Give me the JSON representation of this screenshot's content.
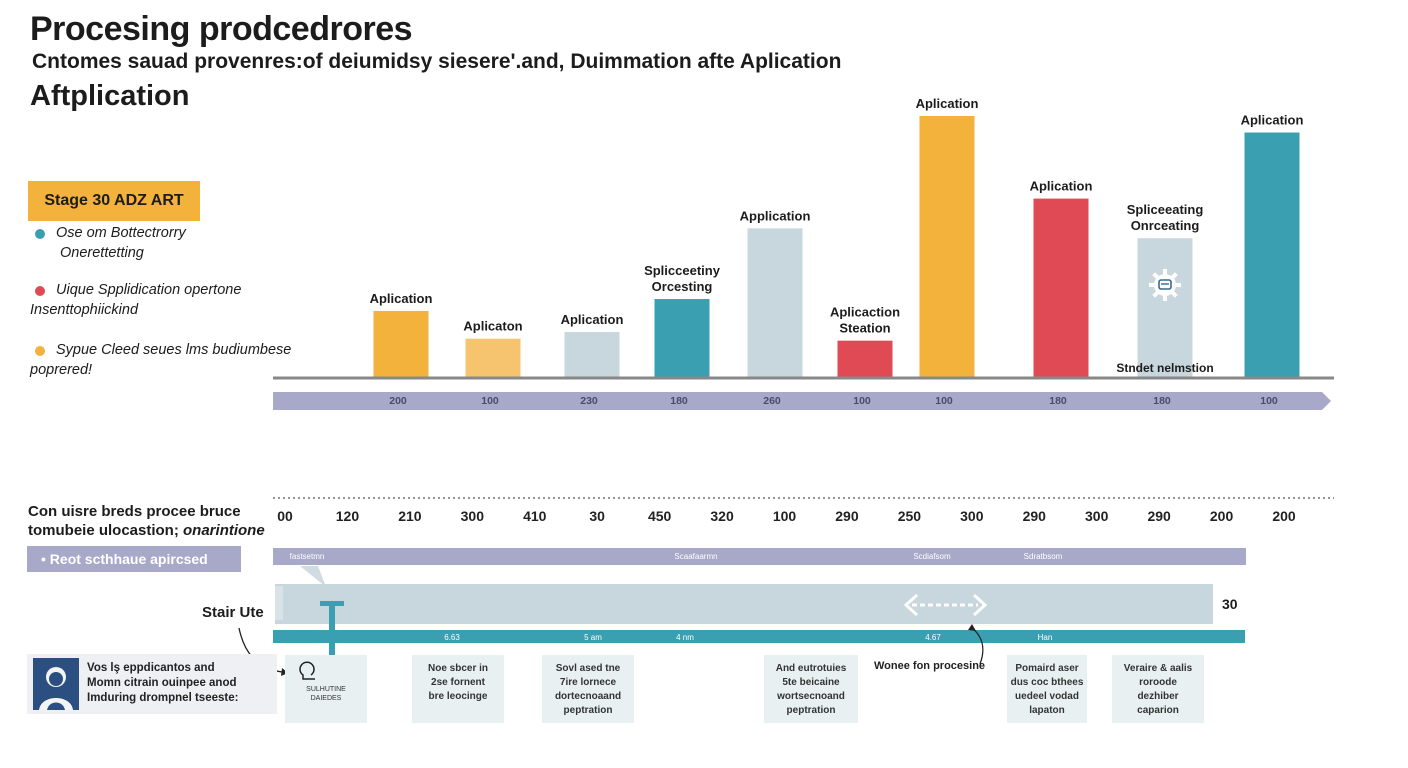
{
  "header": {
    "title": "Procesing prodcedrores",
    "subtitle": "Cntomes sauad provenres:of deiumidsy siesere'.and, Duimmation afte Aplication",
    "subtitle2": "Aftplication"
  },
  "legend": {
    "badge": "Stage 30 ADZ ART",
    "items": [
      {
        "line1": "Ose om Bottectrorry",
        "line2": "Onerettetting",
        "color": "#3a9fb0"
      },
      {
        "line1": "Uique Spplidication opertone",
        "line2": "Insenttophiickind",
        "color": "#e04a55"
      },
      {
        "line1": "Sypue Cleed seues lms budiumbese",
        "line2": "poprered!",
        "color": "#f2b23c"
      }
    ]
  },
  "chart_data": [
    {
      "type": "bar",
      "title": "Aftplication",
      "categories": [
        "Aplication",
        "Aplicaton",
        "Aplication",
        "Splicceetiny Orcesting",
        "Application",
        "Aplicaction Steation",
        "Aplication",
        "Aplication",
        "Spliceeating Onrceating",
        "Aplication"
      ],
      "values": [
        100,
        58,
        68,
        118,
        225,
        55,
        395,
        270,
        210,
        370
      ],
      "axis_values": [
        "200",
        "100",
        "230",
        "180",
        "260",
        "100",
        "100",
        "180",
        "180",
        "100"
      ],
      "colors": [
        "#f2b23c",
        "#f6c46e",
        "#c8d6de",
        "#3a9fb0",
        "#c8d6de",
        "#e04a55",
        "#f2b23c",
        "#e04a55",
        "#c8d6de",
        "#3a9fb0"
      ],
      "ylim": [
        0,
        420
      ],
      "annotation": "Stndet nelmstion"
    },
    {
      "type": "table",
      "title": "Con uisre breds procee bruce",
      "ticks": [
        "00",
        "120",
        "210",
        "300",
        "410",
        "30",
        "450",
        "320",
        "100",
        "290",
        "250",
        "300",
        "290",
        "300",
        "290",
        "200",
        "200"
      ],
      "phase_labels": [
        "fastsetmn",
        "Scaafaarmn",
        "Scdiafsom",
        "Sdratbsom"
      ],
      "lower_labels": [
        "6.63",
        "5 am",
        "4 nm",
        "4.67",
        "Han"
      ],
      "bar_value": "30"
    }
  ],
  "lower": {
    "title_line1": "Con uisre breds procee bruce",
    "title_line2": "tomubeie ulocastion;",
    "title_line2_italic": "onarintione",
    "pill": "• Reot scthhaue apircsed",
    "stair_label": "Stair Ute",
    "value_label": "30",
    "callout": "Wonee fon procesine"
  },
  "person": {
    "line1": "Vos lş eppdicantos and",
    "line2": "Momn citrain ouinpee anod",
    "line3": "Imduring drompnel tseeste:"
  },
  "notes": [
    {
      "lines": [
        "",
        "",
        "",
        "SULHUTINE",
        "DAIEDES"
      ]
    },
    {
      "lines": [
        "Noe sbcer in",
        "2se fornent",
        "bre leocinge"
      ]
    },
    {
      "lines": [
        "Sovl ased tne",
        "7ire lornece",
        "dortecnoaand",
        "peptration"
      ]
    },
    {
      "lines": [
        "And eutrotuies",
        "5te beicaine",
        "wortsecnoand",
        "peptration"
      ]
    },
    {
      "lines": [
        "Pomaird aser",
        "dus coc bthees",
        "uedeel vodad",
        "lapaton"
      ]
    },
    {
      "lines": [
        "Veraire & aalis",
        "roroode",
        "dezhiber",
        "caparion"
      ]
    }
  ]
}
